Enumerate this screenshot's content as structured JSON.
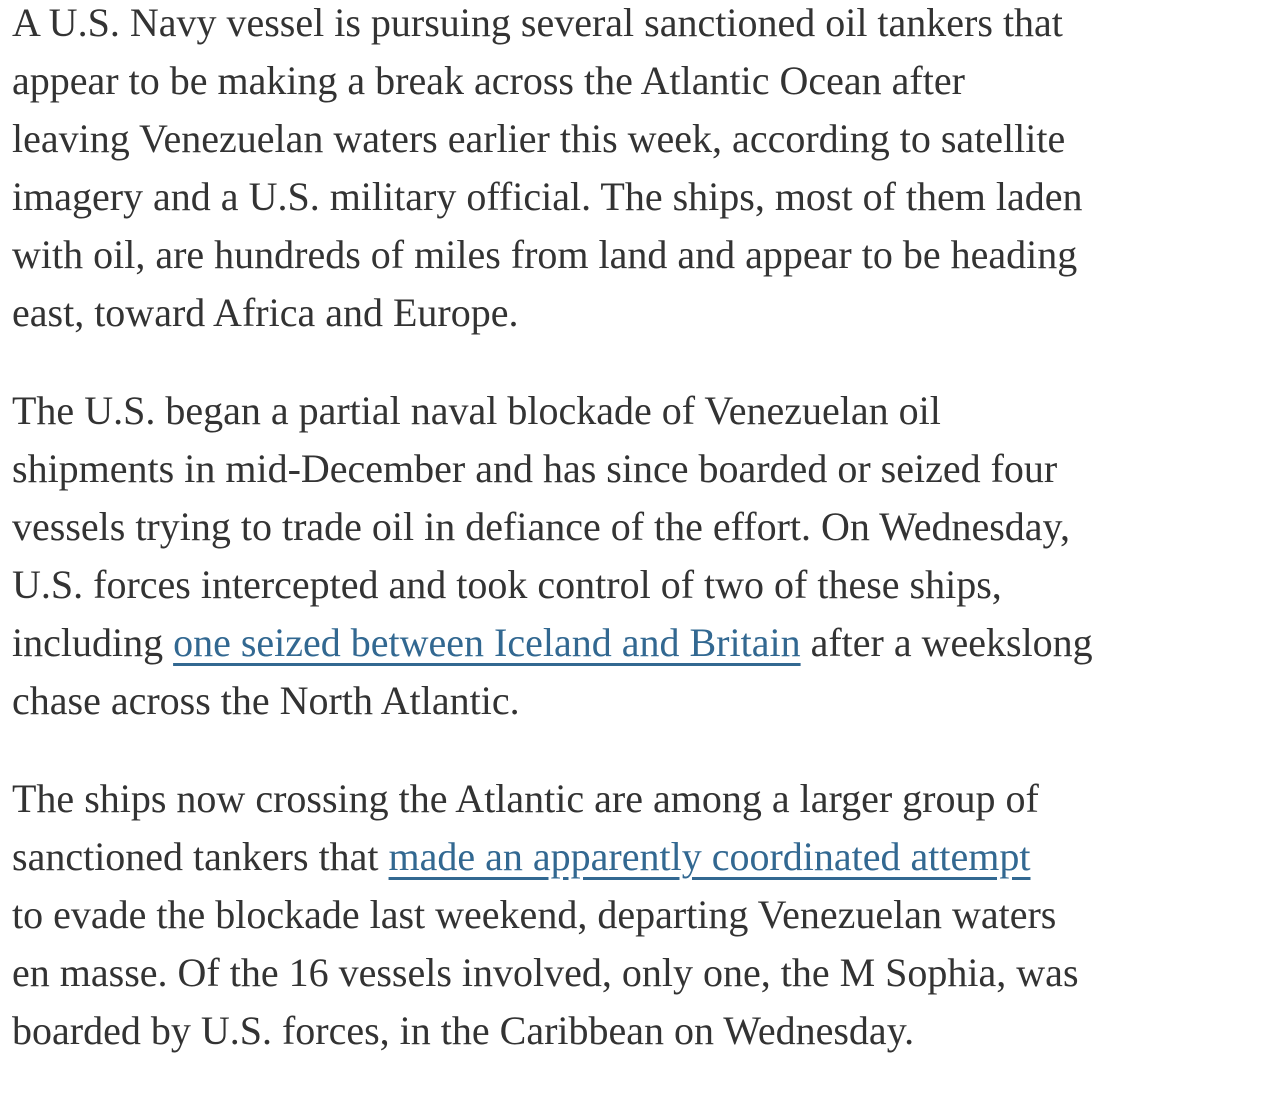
{
  "page": {
    "background_color": "#ffffff",
    "text_color": "#333333",
    "link_color": "#326891"
  },
  "paragraphs": [
    {
      "lines": [
        {
          "pre": "A U.S. Navy vessel is pursuing several sanctioned oil tankers that"
        },
        {
          "pre": "appear to be making a break across the Atlantic Ocean after"
        },
        {
          "pre": "leaving Venezuelan waters earlier this week, according to satellite"
        },
        {
          "pre": "imagery and a U.S. military official. The ships, most of them laden"
        },
        {
          "pre": "with oil, are hundreds of miles from land and appear to be heading"
        },
        {
          "pre": "east, toward Africa and Europe."
        }
      ]
    },
    {
      "lines": [
        {
          "pre": "The U.S. began a partial naval blockade of Venezuelan oil"
        },
        {
          "pre": "shipments in mid-December and has since boarded or seized four"
        },
        {
          "pre": "vessels trying to trade oil in defiance of the effort. On Wednesday,"
        },
        {
          "pre": "U.S. forces intercepted and took control of two of these ships,"
        },
        {
          "pre": "including ",
          "link": "one seized between Iceland and Britain",
          "post": " after a weekslong"
        },
        {
          "pre": "chase across the North Atlantic."
        }
      ]
    },
    {
      "lines": [
        {
          "pre": "The ships now crossing the Atlantic are among a larger group of"
        },
        {
          "pre": "sanctioned tankers that ",
          "link": "made an apparently coordinated attempt"
        },
        {
          "pre": "to evade the blockade last weekend, departing Venezuelan waters"
        },
        {
          "pre": "en masse. Of the 16 vessels involved, only one, the M Sophia, was"
        },
        {
          "pre": "boarded by U.S. forces, in the Caribbean on Wednesday."
        }
      ]
    }
  ]
}
